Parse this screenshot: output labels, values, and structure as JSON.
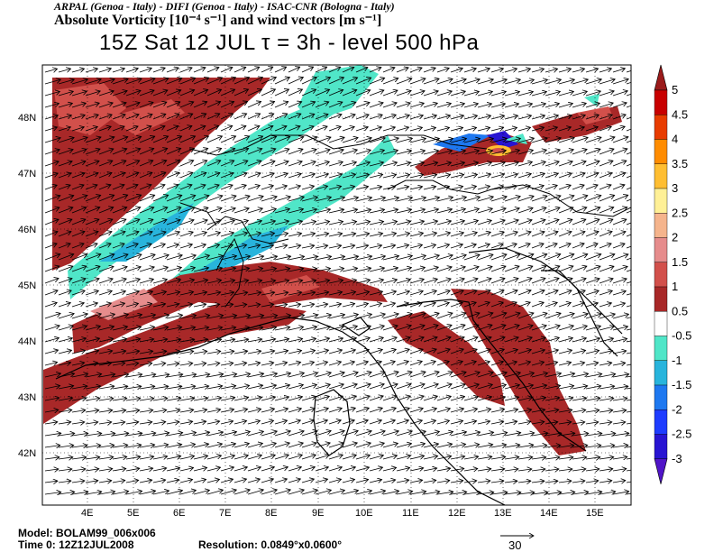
{
  "header": {
    "line1": "ARPAL (Genoa - Italy)  -  DIFI (Genoa - Italy)  -  ISAC-CNR (Bologna - Italy)",
    "line2": "Absolute Vorticity [10⁻⁴ s⁻¹] and wind vectors [m s⁻¹]",
    "line3": "15Z Sat 12 JUL   τ = 3h   -   level 500 hPa"
  },
  "footer": {
    "model": "Model: BOLAM99_006x006",
    "time": "Time 0: 12Z12JUL2008",
    "resolution": "Resolution: 0.0849°x0.0600°",
    "vector_ref": "30"
  },
  "axes": {
    "x_ticks": [
      "4E",
      "5E",
      "6E",
      "7E",
      "8E",
      "9E",
      "10E",
      "11E",
      "12E",
      "13E",
      "14E",
      "15E"
    ],
    "y_ticks": [
      "48N",
      "47N",
      "46N",
      "45N",
      "44N",
      "43N",
      "42N"
    ]
  },
  "colorbar": {
    "labels": [
      "5",
      "4.5",
      "4",
      "3.5",
      "3",
      "2.5",
      "2",
      "1.5",
      "1",
      "0.5",
      "-0.5",
      "-1",
      "-1.5",
      "-2",
      "-2.5",
      "-3"
    ],
    "colors": [
      "#9b1b1b",
      "#c80000",
      "#e83c00",
      "#ff8c00",
      "#ffbe32",
      "#fff096",
      "#f5b48c",
      "#e68c8c",
      "#d2504b",
      "#a82828",
      "#ffffff",
      "#50e6c8",
      "#28b4dc",
      "#1e78f0",
      "#1e3cff",
      "#2814d2",
      "#5014c8"
    ]
  },
  "colors": {
    "vort_pos": "#a82828",
    "vort_pos2": "#d2504b",
    "vort_pos3": "#e68c8c",
    "vort_neg1": "#50e6c8",
    "vort_neg2": "#28b4dc",
    "vort_neg3": "#1e78f0",
    "vort_neg4": "#2814d2",
    "hot": "#ffbe32"
  }
}
